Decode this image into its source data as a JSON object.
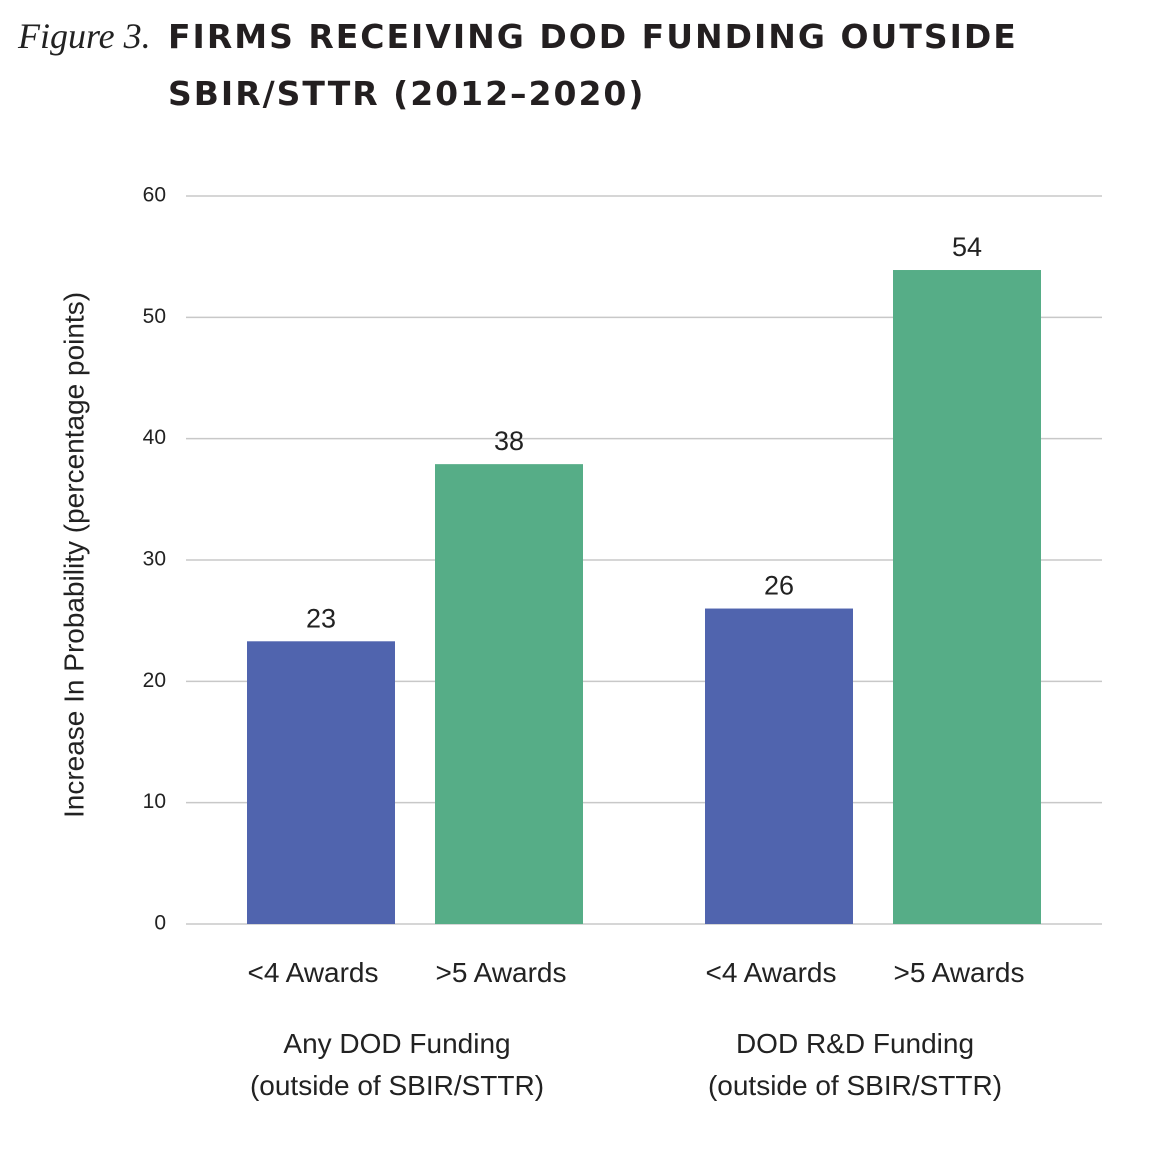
{
  "chart_data": {
    "type": "grouped-bar",
    "figure_label": "Figure 3.",
    "title_lines": [
      "FIRMS RECEIVING DOD FUNDING OUTSIDE",
      "SBIR/STTR (2012–2020)"
    ],
    "y_label": "Increase In Probability (percentage points)",
    "ylim": [
      0,
      60
    ],
    "yticks": [
      0,
      10,
      20,
      30,
      40,
      50,
      60
    ],
    "grid": true,
    "groups": [
      {
        "label_lines": [
          "Any DOD Funding",
          "(outside of SBIR/STTR)"
        ],
        "categories": [
          "<4 Awards",
          ">5 Awards"
        ],
        "values": [
          23.3,
          37.9
        ],
        "value_labels": [
          "23",
          "38"
        ],
        "colors": [
          "#5064ae",
          "#56ad87"
        ]
      },
      {
        "label_lines": [
          "DOD R&D Funding",
          "(outside of SBIR/STTR)"
        ],
        "categories": [
          "<4 Awards",
          ">5 Awards"
        ],
        "values": [
          26,
          53.9
        ],
        "value_labels": [
          "26",
          "54"
        ],
        "colors": [
          "#5064ae",
          "#56ad87"
        ]
      }
    ]
  }
}
